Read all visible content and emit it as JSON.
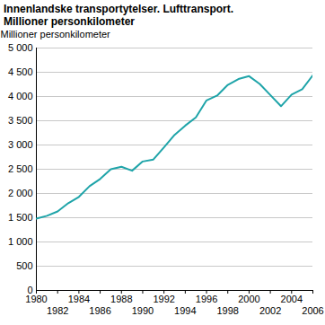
{
  "chart_data": {
    "type": "line",
    "title": "Innenlandske transportytelser. Lufttransport.",
    "subtitle": "Millioner personkilometer",
    "y_label": "Millioner personkilometer",
    "x": [
      1980,
      1981,
      1982,
      1983,
      1984,
      1985,
      1986,
      1987,
      1988,
      1989,
      1990,
      1991,
      1992,
      1993,
      1994,
      1995,
      1996,
      1997,
      1998,
      1999,
      2000,
      2001,
      2002,
      2003,
      2004,
      2005,
      2006
    ],
    "values": [
      1480,
      1540,
      1630,
      1800,
      1930,
      2150,
      2300,
      2500,
      2550,
      2470,
      2660,
      2700,
      2950,
      3210,
      3400,
      3570,
      3920,
      4020,
      4240,
      4360,
      4420,
      4260,
      4030,
      3800,
      4040,
      4150,
      4440
    ],
    "color": "#1fa4a9",
    "xlim": [
      1980,
      2006
    ],
    "xticks": [
      1980,
      1982,
      1984,
      1986,
      1988,
      1990,
      1992,
      1994,
      1996,
      1998,
      2000,
      2002,
      2004,
      2006
    ],
    "ylim": [
      0,
      5000
    ],
    "yticks": [
      0,
      500,
      {
        "value": 1000,
        "label": "1 000"
      },
      {
        "value": 1500,
        "label": "1 500"
      },
      {
        "value": 2000,
        "label": "2 000"
      },
      {
        "value": 2500,
        "label": "2 500"
      },
      {
        "value": 3000,
        "label": "3 000"
      },
      {
        "value": 3500,
        "label": "3 500"
      },
      {
        "value": 4000,
        "label": "4 000"
      },
      {
        "value": 4500,
        "label": "4 500"
      },
      {
        "value": 5000,
        "label": "5 000"
      }
    ],
    "grid": true
  }
}
